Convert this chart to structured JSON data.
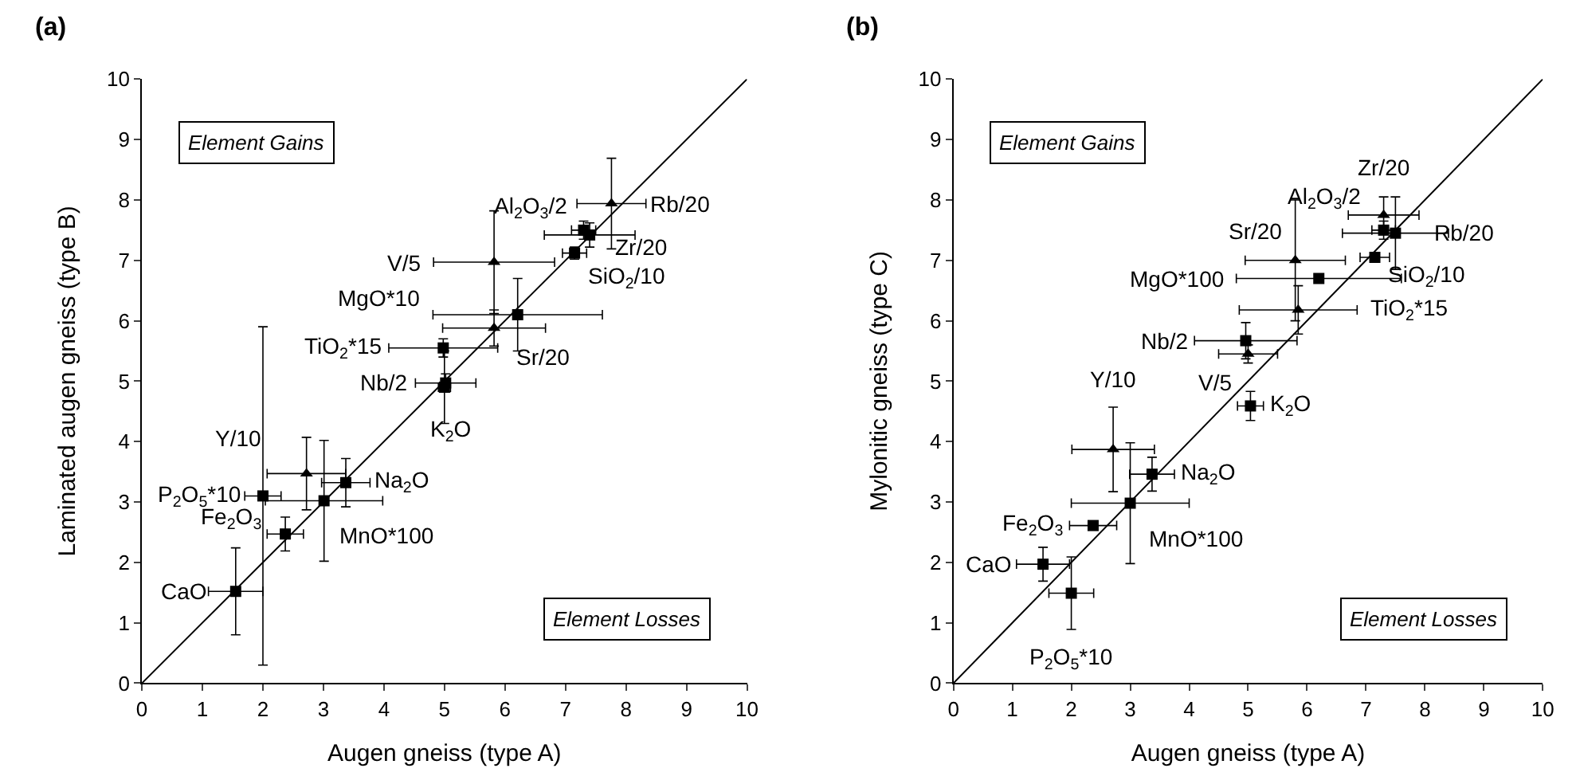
{
  "chart_data": [
    {
      "type": "scatter",
      "title": "(a)",
      "xlabel": "Augen gneiss (type A)",
      "ylabel": "Laminated augen gneiss (type B)",
      "xlim": [
        0,
        10
      ],
      "ylim": [
        0,
        10
      ],
      "xticks": [
        0,
        1,
        2,
        3,
        4,
        5,
        6,
        7,
        8,
        9,
        10
      ],
      "yticks": [
        0,
        1,
        2,
        3,
        4,
        5,
        6,
        7,
        8,
        9,
        10
      ],
      "series": [
        {
          "type": "line",
          "x": [
            0,
            10
          ],
          "values": [
            0,
            10
          ],
          "color": "#000000",
          "marker": "none"
        },
        {
          "marker": "square",
          "color": "#000000",
          "x": [
            1.55,
            2.0,
            2.37,
            3.01,
            3.37,
            5.0,
            5.02,
            4.98,
            6.21,
            7.15,
            7.3,
            7.4
          ],
          "values": [
            1.52,
            3.1,
            2.47,
            3.02,
            3.32,
            4.9,
            4.97,
            5.55,
            6.1,
            7.12,
            7.5,
            7.42
          ],
          "xerrors": [
            0.45,
            0.3,
            0.3,
            0.97,
            0.4,
            0.1,
            0.5,
            0.9,
            1.4,
            0.2,
            0.2,
            0.75
          ],
          "errors": [
            0.72,
            2.8,
            0.28,
            1.0,
            0.4,
            0.6,
            0.15,
            0.15,
            0.6,
            0.1,
            0.15,
            0.2
          ]
        },
        {
          "marker": "triangle",
          "color": "#000000",
          "x": [
            2.72,
            5.82,
            5.82,
            7.76
          ],
          "values": [
            3.47,
            5.88,
            6.97,
            7.94
          ],
          "xerrors": [
            0.65,
            0.85,
            1.0,
            0.57
          ],
          "errors": [
            0.6,
            0.3,
            0.85,
            0.75
          ]
        }
      ],
      "annotations": [
        {
          "text": "CaO",
          "x": 1.55,
          "y": 1.52
        },
        {
          "text": "P$_{2}$O$_{5}$*10",
          "x": 2.0,
          "y": 3.1
        },
        {
          "text": "Fe$_{2}$O$_{3}$",
          "x": 2.37,
          "y": 2.47
        },
        {
          "text": "MnO*100",
          "x": 3.01,
          "y": 3.02
        },
        {
          "text": "Na$_{2}$O",
          "x": 3.37,
          "y": 3.32
        },
        {
          "text": "K$_{2}$O",
          "x": 5.0,
          "y": 4.9
        },
        {
          "text": "Nb/2",
          "x": 5.02,
          "y": 4.97
        },
        {
          "text": "TiO$_{2}$*15",
          "x": 4.98,
          "y": 5.55
        },
        {
          "text": "MgO*10",
          "x": 4.81,
          "y": 6.1
        },
        {
          "text": "SiO$_{2}$/10",
          "x": 7.15,
          "y": 7.12
        },
        {
          "text": "Al$_{2}$O$_{3}$/2",
          "x": 7.3,
          "y": 7.5
        },
        {
          "text": "Zr/20",
          "x": 7.4,
          "y": 7.42
        },
        {
          "text": "Y/10",
          "x": 2.72,
          "y": 3.47
        },
        {
          "text": "Sr/20",
          "x": 5.82,
          "y": 5.88
        },
        {
          "text": "V/5",
          "x": 4.82,
          "y": 6.97
        },
        {
          "text": "Rb/20",
          "x": 7.76,
          "y": 7.94
        },
        "Element Gains",
        "Element Losses"
      ]
    },
    {
      "type": "scatter",
      "title": "(b)",
      "xlabel": "Augen gneiss (type A)",
      "ylabel": "Mylonitic gneiss (type C)",
      "xlim": [
        0,
        10
      ],
      "ylim": [
        0,
        10
      ],
      "xticks": [
        0,
        1,
        2,
        3,
        4,
        5,
        6,
        7,
        8,
        9,
        10
      ],
      "yticks": [
        0,
        1,
        2,
        3,
        4,
        5,
        6,
        7,
        8,
        9,
        10
      ],
      "series": [
        {
          "type": "line",
          "x": [
            0,
            10
          ],
          "values": [
            0,
            10
          ],
          "color": "#000000",
          "marker": "none"
        },
        {
          "marker": "square",
          "color": "#000000",
          "x": [
            1.52,
            2.0,
            2.37,
            3.0,
            3.37,
            5.04,
            4.96,
            6.2,
            7.15,
            7.3,
            7.5
          ],
          "values": [
            1.97,
            1.49,
            2.61,
            2.98,
            3.46,
            4.59,
            5.67,
            6.7,
            7.05,
            7.5,
            7.45
          ],
          "xerrors": [
            0.45,
            0.38,
            0.4,
            1.0,
            0.38,
            0.22,
            0.87,
            1.4,
            0.25,
            0.2,
            0.9
          ],
          "errors": [
            0.28,
            0.6,
            null,
            1.0,
            0.28,
            0.24,
            0.3,
            null,
            null,
            0.15,
            0.6
          ]
        },
        {
          "marker": "triangle",
          "color": "#000000",
          "x": [
            2.71,
            5.0,
            5.8,
            5.85,
            7.3
          ],
          "values": [
            3.87,
            5.45,
            7.0,
            6.18,
            7.75
          ],
          "xerrors": [
            0.7,
            0.5,
            0.85,
            1.0,
            0.6
          ],
          "errors": [
            0.7,
            0.15,
            1.0,
            0.4,
            0.3
          ]
        }
      ],
      "annotations": [
        {
          "text": "CaO",
          "x": 1.52,
          "y": 1.97
        },
        {
          "text": "P$_{2}$O$_{5}$*10",
          "x": 2.0,
          "y": 1.49
        },
        {
          "text": "Fe$_{2}$O$_{3}$",
          "x": 2.37,
          "y": 2.61
        },
        {
          "text": "MnO*100",
          "x": 3.0,
          "y": 2.98
        },
        {
          "text": "Na$_{2}$O",
          "x": 3.37,
          "y": 3.46
        },
        {
          "text": "K$_{2}$O",
          "x": 5.04,
          "y": 4.59
        },
        {
          "text": "Nb/2",
          "x": 4.96,
          "y": 5.67
        },
        {
          "text": "MgO*100",
          "x": 4.8,
          "y": 6.7
        },
        {
          "text": "SiO$_{2}$/10",
          "x": 7.15,
          "y": 7.05
        },
        {
          "text": "Al$_{2}$O$_{3}$/2",
          "x": 7.3,
          "y": 7.5
        },
        {
          "text": "Rb/20",
          "x": 7.5,
          "y": 7.45
        },
        {
          "text": "Y/10",
          "x": 2.71,
          "y": 3.87
        },
        {
          "text": "V/5",
          "x": 5.0,
          "y": 5.45
        },
        {
          "text": "Sr/20",
          "x": 5.8,
          "y": 7.0
        },
        {
          "text": "TiO$_{2}$*15",
          "x": 6.85,
          "y": 6.18
        },
        {
          "text": "Zr/20",
          "x": 7.3,
          "y": 7.75
        },
        "Element Gains",
        "Element Losses"
      ]
    }
  ]
}
